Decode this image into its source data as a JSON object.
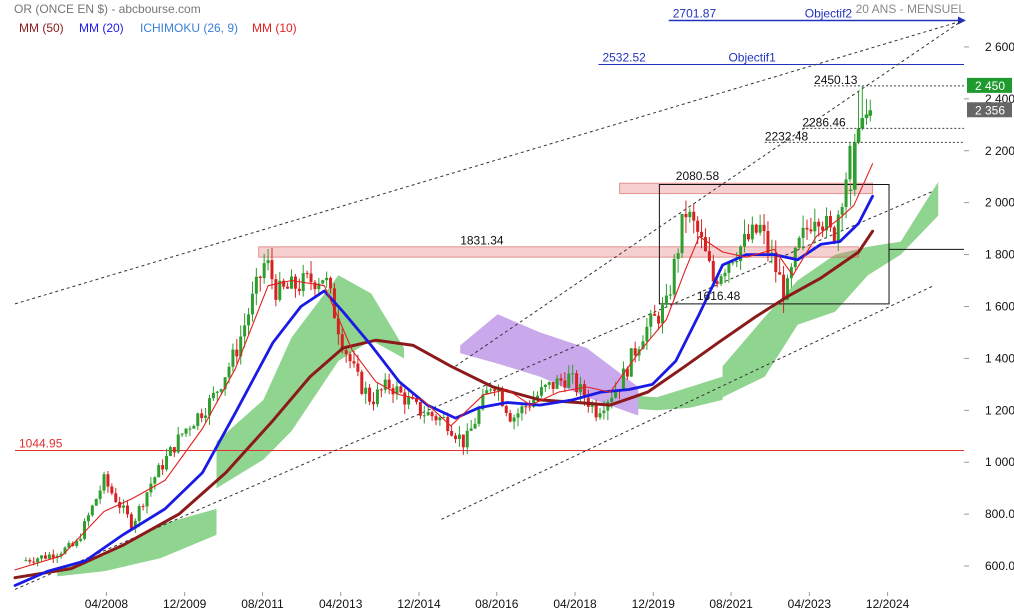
{
  "header": {
    "instrument": "OR (ONCE EN $) - abcbourse.com",
    "period": "20 ANS - MENSUEL"
  },
  "legend": [
    {
      "label": "MM (50)",
      "color": "#8b1a1a"
    },
    {
      "label": "MM (20)",
      "color": "#1a1ae6"
    },
    {
      "label": "ICHIMOKU (26, 9)",
      "color": "#3a7fd5"
    },
    {
      "label": "MM (10)",
      "color": "#e0201f"
    }
  ],
  "chart_data": {
    "type": "candlestick",
    "ylim": [
      500,
      2750
    ],
    "xlim": [
      2006.3,
      2026.55
    ],
    "y_ticks": [
      600,
      800,
      1000,
      1200,
      1400,
      1600,
      1800,
      2000,
      2200,
      2400,
      2600
    ],
    "y_tick_labels": [
      "600.0",
      "800.0",
      "1 000",
      "1 200",
      "1 400",
      "1 600",
      "1 800",
      "2 000",
      "2 200",
      "2 400",
      "2 600"
    ],
    "x_ticks": [
      2008.25,
      2009.92,
      2011.58,
      2013.25,
      2014.92,
      2016.58,
      2018.25,
      2019.92,
      2021.58,
      2023.25,
      2024.92
    ],
    "x_tick_labels": [
      "04/2008",
      "12/2009",
      "08/2011",
      "04/2013",
      "12/2014",
      "08/2016",
      "04/2018",
      "12/2019",
      "08/2021",
      "04/2023",
      "12/2024"
    ],
    "price_path": [
      [
        2006.45,
        620
      ],
      [
        2007.0,
        640
      ],
      [
        2007.6,
        680
      ],
      [
        2008.2,
        930
      ],
      [
        2008.8,
        760
      ],
      [
        2009.2,
        920
      ],
      [
        2009.9,
        1120
      ],
      [
        2010.5,
        1240
      ],
      [
        2011.0,
        1420
      ],
      [
        2011.65,
        1780
      ],
      [
        2011.9,
        1650
      ],
      [
        2012.3,
        1680
      ],
      [
        2012.9,
        1720
      ],
      [
        2013.3,
        1460
      ],
      [
        2013.6,
        1320
      ],
      [
        2013.9,
        1240
      ],
      [
        2014.3,
        1300
      ],
      [
        2014.9,
        1200
      ],
      [
        2015.5,
        1160
      ],
      [
        2015.9,
        1070
      ],
      [
        2016.5,
        1320
      ],
      [
        2016.9,
        1170
      ],
      [
        2017.6,
        1280
      ],
      [
        2018.1,
        1330
      ],
      [
        2018.7,
        1200
      ],
      [
        2019.2,
        1300
      ],
      [
        2019.7,
        1500
      ],
      [
        2020.2,
        1600
      ],
      [
        2020.6,
        1970
      ],
      [
        2020.9,
        1870
      ],
      [
        2021.2,
        1700
      ],
      [
        2021.6,
        1800
      ],
      [
        2022.2,
        1900
      ],
      [
        2022.75,
        1640
      ],
      [
        2023.0,
        1820
      ],
      [
        2023.4,
        1980
      ],
      [
        2023.75,
        1860
      ],
      [
        2023.95,
        2040
      ],
      [
        2024.2,
        2240
      ],
      [
        2024.45,
        2330
      ],
      [
        2024.6,
        2356
      ]
    ],
    "last_candles": [
      {
        "t": 2024.13,
        "o": 2045,
        "h": 2074,
        "l": 1985,
        "c": 2050
      },
      {
        "t": 2024.22,
        "o": 2050,
        "h": 2265,
        "l": 2025,
        "c": 2232
      },
      {
        "t": 2024.3,
        "o": 2232,
        "h": 2432,
        "l": 2225,
        "c": 2286
      },
      {
        "t": 2024.38,
        "o": 2286,
        "h": 2450,
        "l": 2278,
        "c": 2326
      },
      {
        "t": 2024.47,
        "o": 2326,
        "h": 2400,
        "l": 2300,
        "c": 2340
      },
      {
        "t": 2024.55,
        "o": 2335,
        "h": 2397,
        "l": 2313,
        "c": 2356
      }
    ],
    "last_price": 2356,
    "price_badges": [
      {
        "label": "2 450",
        "value": 2450,
        "color": "#1f9a2e"
      },
      {
        "label": "2 356",
        "value": 2356,
        "color": "#666666"
      }
    ],
    "hlines": [
      {
        "value": 2701.87,
        "label": "2701.87",
        "note": "Objectif2",
        "x0": 2020.25,
        "color": "#2233bb"
      },
      {
        "value": 2532.52,
        "label": "2532.52",
        "note": "Objectif1",
        "x0": 2018.75,
        "color": "#2233bb"
      },
      {
        "value": 1044.95,
        "label": "1044.95",
        "note": "",
        "x0": 2006.3,
        "color": "#e03030"
      }
    ],
    "level_labels": [
      {
        "value": 2450.13,
        "label": "2450.13",
        "x": 2023.35
      },
      {
        "value": 2286.46,
        "label": "2286.46",
        "x": 2023.1
      },
      {
        "value": 2232.48,
        "label": "2232.48",
        "x": 2022.3
      },
      {
        "value": 2080.58,
        "label": "2080.58",
        "x": 2020.4
      },
      {
        "value": 1831.34,
        "label": "1831.34",
        "x": 2015.8
      },
      {
        "value": 1616.48,
        "label": "1616.48",
        "x": 2020.85
      }
    ],
    "zones": [
      {
        "y0": 2035,
        "y1": 2075,
        "x0": 2019.2,
        "x1": 2024.6,
        "label": "2080.58"
      },
      {
        "y0": 1790,
        "y1": 1830,
        "x0": 2011.5,
        "x1": 2024.3,
        "label": "1831.34"
      }
    ],
    "box": {
      "x0": 2020.05,
      "x1": 2024.95,
      "y0": 1610,
      "y1": 2070
    },
    "trend_lines": [
      {
        "p1": [
          2006.3,
          1610
        ],
        "p2": [
          2026.5,
          2700
        ]
      },
      {
        "p1": [
          2015.7,
          1370
        ],
        "p2": [
          2026.5,
          2700
        ]
      },
      {
        "p1": [
          2006.3,
          510
        ],
        "p2": [
          2025.9,
          2045
        ]
      },
      {
        "p1": [
          2015.4,
          780
        ],
        "p2": [
          2025.9,
          1680
        ]
      }
    ],
    "mm50": [
      [
        2006.3,
        555
      ],
      [
        2007.5,
        590
      ],
      [
        2008.6,
        680
      ],
      [
        2009.8,
        800
      ],
      [
        2010.8,
        960
      ],
      [
        2011.8,
        1160
      ],
      [
        2012.6,
        1330
      ],
      [
        2013.3,
        1440
      ],
      [
        2014.0,
        1470
      ],
      [
        2014.8,
        1450
      ],
      [
        2015.6,
        1370
      ],
      [
        2016.5,
        1290
      ],
      [
        2017.5,
        1240
      ],
      [
        2018.3,
        1230
      ],
      [
        2019.0,
        1220
      ],
      [
        2019.8,
        1270
      ],
      [
        2020.6,
        1370
      ],
      [
        2021.3,
        1460
      ],
      [
        2022.1,
        1560
      ],
      [
        2022.8,
        1640
      ],
      [
        2023.5,
        1710
      ],
      [
        2024.3,
        1810
      ],
      [
        2024.6,
        1890
      ]
    ],
    "mm20": [
      [
        2006.3,
        525
      ],
      [
        2007.0,
        580
      ],
      [
        2007.8,
        620
      ],
      [
        2008.6,
        720
      ],
      [
        2009.5,
        820
      ],
      [
        2010.3,
        960
      ],
      [
        2011.0,
        1190
      ],
      [
        2011.8,
        1460
      ],
      [
        2012.4,
        1600
      ],
      [
        2012.9,
        1660
      ],
      [
        2013.3,
        1580
      ],
      [
        2013.9,
        1450
      ],
      [
        2014.5,
        1310
      ],
      [
        2015.1,
        1220
      ],
      [
        2015.7,
        1170
      ],
      [
        2016.2,
        1210
      ],
      [
        2016.8,
        1230
      ],
      [
        2017.5,
        1220
      ],
      [
        2018.2,
        1240
      ],
      [
        2018.8,
        1270
      ],
      [
        2019.4,
        1280
      ],
      [
        2019.9,
        1300
      ],
      [
        2020.4,
        1390
      ],
      [
        2020.9,
        1570
      ],
      [
        2021.4,
        1760
      ],
      [
        2021.9,
        1800
      ],
      [
        2022.5,
        1800
      ],
      [
        2023.0,
        1780
      ],
      [
        2023.5,
        1840
      ],
      [
        2023.9,
        1850
      ],
      [
        2024.3,
        1920
      ],
      [
        2024.6,
        2025
      ]
    ],
    "mm10": [
      [
        2006.3,
        585
      ],
      [
        2007.3,
        640
      ],
      [
        2008.2,
        810
      ],
      [
        2008.8,
        860
      ],
      [
        2009.5,
        930
      ],
      [
        2010.3,
        1130
      ],
      [
        2011.0,
        1360
      ],
      [
        2011.7,
        1680
      ],
      [
        2012.2,
        1700
      ],
      [
        2012.9,
        1680
      ],
      [
        2013.5,
        1430
      ],
      [
        2014.0,
        1310
      ],
      [
        2014.5,
        1260
      ],
      [
        2015.0,
        1240
      ],
      [
        2015.6,
        1140
      ],
      [
        2016.3,
        1260
      ],
      [
        2016.8,
        1280
      ],
      [
        2017.3,
        1220
      ],
      [
        2017.9,
        1270
      ],
      [
        2018.5,
        1290
      ],
      [
        2019.0,
        1270
      ],
      [
        2019.6,
        1420
      ],
      [
        2020.2,
        1550
      ],
      [
        2020.6,
        1740
      ],
      [
        2020.9,
        1870
      ],
      [
        2021.4,
        1810
      ],
      [
        2021.9,
        1790
      ],
      [
        2022.5,
        1820
      ],
      [
        2022.9,
        1720
      ],
      [
        2023.4,
        1870
      ],
      [
        2023.9,
        1940
      ],
      [
        2024.2,
        1990
      ],
      [
        2024.6,
        2150
      ]
    ],
    "ichimoku_green": [
      {
        "x0": 2007.2,
        "x1": 2010.6,
        "top": [
          [
            2007.2,
            590
          ],
          [
            2008.2,
            640
          ],
          [
            2009.4,
            760
          ],
          [
            2010.6,
            820
          ]
        ],
        "bot": [
          [
            2007.2,
            560
          ],
          [
            2008.2,
            580
          ],
          [
            2009.4,
            630
          ],
          [
            2010.6,
            720
          ]
        ]
      },
      {
        "x0": 2010.6,
        "x1": 2014.6,
        "top": [
          [
            2010.6,
            1080
          ],
          [
            2011.6,
            1240
          ],
          [
            2012.2,
            1480
          ],
          [
            2013.2,
            1720
          ],
          [
            2013.9,
            1650
          ],
          [
            2014.6,
            1440
          ]
        ],
        "bot": [
          [
            2010.6,
            900
          ],
          [
            2011.6,
            1010
          ],
          [
            2012.2,
            1120
          ],
          [
            2013.2,
            1390
          ],
          [
            2013.9,
            1470
          ],
          [
            2014.6,
            1400
          ]
        ]
      },
      {
        "x0": 2019.2,
        "x1": 2021.4,
        "top": [
          [
            2019.2,
            1260
          ],
          [
            2020.0,
            1250
          ],
          [
            2020.7,
            1290
          ],
          [
            2021.4,
            1330
          ]
        ],
        "bot": [
          [
            2019.2,
            1210
          ],
          [
            2020.0,
            1200
          ],
          [
            2020.7,
            1210
          ],
          [
            2021.4,
            1240
          ]
        ]
      },
      {
        "x0": 2021.4,
        "x1": 2026.0,
        "top": [
          [
            2021.4,
            1370
          ],
          [
            2022.3,
            1560
          ],
          [
            2023.0,
            1700
          ],
          [
            2023.8,
            1800
          ],
          [
            2024.5,
            1830
          ],
          [
            2025.2,
            1850
          ],
          [
            2026.0,
            2080
          ]
        ],
        "bot": [
          [
            2021.4,
            1250
          ],
          [
            2022.3,
            1330
          ],
          [
            2023.0,
            1530
          ],
          [
            2023.8,
            1580
          ],
          [
            2024.5,
            1720
          ],
          [
            2025.2,
            1800
          ],
          [
            2026.0,
            1950
          ]
        ]
      }
    ],
    "ichimoku_purple": [
      {
        "x0": 2015.8,
        "x1": 2019.6,
        "top": [
          [
            2015.8,
            1450
          ],
          [
            2016.6,
            1570
          ],
          [
            2017.5,
            1500
          ],
          [
            2018.5,
            1440
          ],
          [
            2019.6,
            1290
          ]
        ],
        "bot": [
          [
            2015.8,
            1420
          ],
          [
            2016.6,
            1380
          ],
          [
            2017.5,
            1330
          ],
          [
            2018.5,
            1250
          ],
          [
            2019.6,
            1180
          ]
        ]
      }
    ]
  }
}
